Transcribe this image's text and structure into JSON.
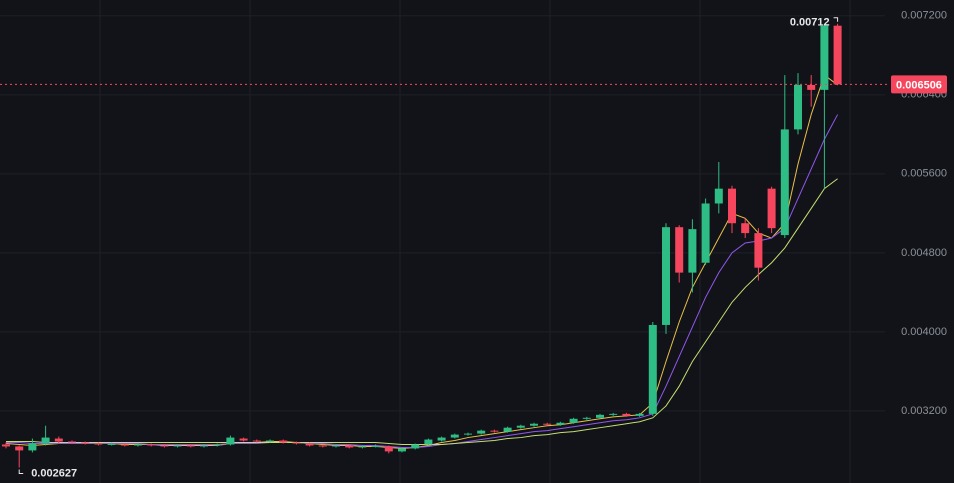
{
  "chart_data": {
    "type": "candlestick",
    "open": [
      0.00286,
      0.00284,
      0.0028,
      0.00287,
      0.00292,
      0.00289,
      0.00288,
      0.00287,
      0.00286,
      0.00286,
      0.00285,
      0.00286,
      0.00285,
      0.00284,
      0.00285,
      0.00284,
      0.00285,
      0.00286,
      0.00292,
      0.0029,
      0.00289,
      0.0029,
      0.00288,
      0.00287,
      0.00285,
      0.00284,
      0.00285,
      0.00283,
      0.00284,
      0.00284,
      0.00279,
      0.00282,
      0.00286,
      0.0029,
      0.00293,
      0.00296,
      0.00297,
      0.003,
      0.00299,
      0.00303,
      0.00305,
      0.00307,
      0.00306,
      0.00308,
      0.00312,
      0.00313,
      0.00316,
      0.00317,
      0.00315,
      0.00317,
      0.00407,
      0.00506,
      0.0046,
      0.0047,
      0.0053,
      0.00545,
      0.0051,
      0.005,
      0.00545,
      0.00498,
      0.00605,
      0.0065,
      0.00645,
      0.0071
    ],
    "high": [
      0.00288,
      0.00285,
      0.00292,
      0.00305,
      0.00294,
      0.0029,
      0.00289,
      0.00288,
      0.00288,
      0.00287,
      0.00287,
      0.00287,
      0.00286,
      0.00286,
      0.00286,
      0.00286,
      0.00287,
      0.00295,
      0.00293,
      0.00291,
      0.00291,
      0.00291,
      0.00289,
      0.00288,
      0.00286,
      0.00286,
      0.00286,
      0.00285,
      0.00286,
      0.00285,
      0.00283,
      0.00287,
      0.00292,
      0.00294,
      0.00297,
      0.00298,
      0.00301,
      0.00301,
      0.00304,
      0.00306,
      0.00308,
      0.00308,
      0.00309,
      0.00313,
      0.00314,
      0.00317,
      0.00318,
      0.00318,
      0.00318,
      0.0041,
      0.0051,
      0.00508,
      0.00514,
      0.00535,
      0.00572,
      0.00548,
      0.00515,
      0.00505,
      0.00547,
      0.0066,
      0.00662,
      0.0066,
      0.007114,
      0.00712
    ],
    "low": [
      0.00282,
      0.002627,
      0.00278,
      0.00285,
      0.00287,
      0.00287,
      0.00286,
      0.00285,
      0.00285,
      0.00284,
      0.00284,
      0.00284,
      0.00283,
      0.00283,
      0.00283,
      0.00283,
      0.00284,
      0.00285,
      0.00289,
      0.00288,
      0.00288,
      0.00287,
      0.00286,
      0.00284,
      0.00283,
      0.00283,
      0.00282,
      0.00282,
      0.00283,
      0.00277,
      0.00278,
      0.00281,
      0.00285,
      0.00289,
      0.00292,
      0.00295,
      0.00296,
      0.00298,
      0.00298,
      0.00302,
      0.00304,
      0.00305,
      0.00305,
      0.00307,
      0.00311,
      0.00312,
      0.00315,
      0.00314,
      0.00314,
      0.00315,
      0.00398,
      0.0045,
      0.0044,
      0.00468,
      0.0052,
      0.005,
      0.00495,
      0.00452,
      0.005,
      0.00495,
      0.006,
      0.00628,
      0.00545,
      0.0065
    ],
    "close": [
      0.00284,
      0.0028,
      0.00287,
      0.00293,
      0.00289,
      0.00288,
      0.00287,
      0.00286,
      0.002865,
      0.00285,
      0.00286,
      0.00285,
      0.00284,
      0.00285,
      0.00284,
      0.00285,
      0.00286,
      0.00293,
      0.0029,
      0.00289,
      0.0029,
      0.00288,
      0.00287,
      0.00285,
      0.00284,
      0.00285,
      0.00283,
      0.00284,
      0.002845,
      0.00279,
      0.00282,
      0.00286,
      0.00291,
      0.00293,
      0.00296,
      0.00297,
      0.003,
      0.00299,
      0.00303,
      0.00305,
      0.00307,
      0.00306,
      0.00308,
      0.00312,
      0.00313,
      0.00316,
      0.00317,
      0.00315,
      0.00317,
      0.00407,
      0.00506,
      0.0046,
      0.00504,
      0.0053,
      0.00545,
      0.0051,
      0.005,
      0.00465,
      0.00505,
      0.00605,
      0.0065,
      0.00645,
      0.0071,
      0.006506
    ],
    "up_color": "#2ebd85",
    "down_color": "#f6465d",
    "lines": [
      {
        "color": "#e8c04a",
        "values": [
          0.00287,
          0.00286,
          0.00285,
          0.00286,
          0.00287,
          0.00288,
          0.00288,
          0.00287,
          0.00287,
          0.00286,
          0.00286,
          0.00286,
          0.00285,
          0.00285,
          0.00285,
          0.00285,
          0.00285,
          0.00287,
          0.00288,
          0.00288,
          0.00289,
          0.00289,
          0.00288,
          0.00287,
          0.00286,
          0.00285,
          0.00285,
          0.00284,
          0.00284,
          0.00283,
          0.00282,
          0.00283,
          0.00285,
          0.00288,
          0.0029,
          0.00293,
          0.00295,
          0.00297,
          0.00299,
          0.00301,
          0.00303,
          0.00305,
          0.00306,
          0.00308,
          0.0031,
          0.00312,
          0.00314,
          0.00315,
          0.00316,
          0.00328,
          0.0037,
          0.0041,
          0.00445,
          0.0047,
          0.00495,
          0.0052,
          0.00515,
          0.005,
          0.00495,
          0.0051,
          0.0057,
          0.0062,
          0.0066,
          0.0065
        ]
      },
      {
        "color": "#9257f0",
        "values": [
          0.00288,
          0.00288,
          0.00287,
          0.00287,
          0.00287,
          0.00287,
          0.00287,
          0.00287,
          0.00287,
          0.00287,
          0.00287,
          0.00286,
          0.00286,
          0.00286,
          0.00286,
          0.00286,
          0.00286,
          0.00287,
          0.00287,
          0.00287,
          0.00288,
          0.00288,
          0.00288,
          0.00287,
          0.00287,
          0.00286,
          0.00286,
          0.00285,
          0.00285,
          0.00284,
          0.00283,
          0.00283,
          0.00284,
          0.00286,
          0.00287,
          0.00289,
          0.00291,
          0.00293,
          0.00295,
          0.00297,
          0.00299,
          0.003,
          0.00302,
          0.00304,
          0.00306,
          0.00308,
          0.0031,
          0.00311,
          0.00313,
          0.00317,
          0.00345,
          0.00375,
          0.00405,
          0.00435,
          0.0046,
          0.0048,
          0.0049,
          0.00492,
          0.00495,
          0.00505,
          0.00535,
          0.00565,
          0.00595,
          0.0062
        ]
      },
      {
        "color": "#c3df72",
        "values": [
          0.00289,
          0.00289,
          0.00289,
          0.00288,
          0.00288,
          0.00288,
          0.00288,
          0.00288,
          0.00288,
          0.00288,
          0.00288,
          0.00288,
          0.00288,
          0.00288,
          0.00288,
          0.00288,
          0.00288,
          0.00288,
          0.00288,
          0.00288,
          0.00288,
          0.00288,
          0.00288,
          0.00288,
          0.00288,
          0.00288,
          0.00288,
          0.00288,
          0.00288,
          0.00287,
          0.00286,
          0.00286,
          0.00286,
          0.00286,
          0.00287,
          0.00288,
          0.00289,
          0.0029,
          0.00292,
          0.00293,
          0.00295,
          0.00296,
          0.00298,
          0.00299,
          0.00301,
          0.00303,
          0.00305,
          0.00307,
          0.00309,
          0.00313,
          0.00325,
          0.00345,
          0.0037,
          0.0039,
          0.0041,
          0.0043,
          0.00445,
          0.00458,
          0.0047,
          0.00485,
          0.00505,
          0.00525,
          0.00545,
          0.00555
        ]
      }
    ],
    "ylim": [
      0.00247,
      0.00736
    ],
    "yticks": [
      {
        "value": 0.0032,
        "label": "0.003200"
      },
      {
        "value": 0.004,
        "label": "0.004000"
      },
      {
        "value": 0.0048,
        "label": "0.004800"
      },
      {
        "value": 0.0056,
        "label": "0.005600"
      },
      {
        "value": 0.0064,
        "label": "0.006400"
      },
      {
        "value": 0.0072,
        "label": "0.007200"
      }
    ],
    "grid": true,
    "price_line_color": "#f6465d"
  }
}
